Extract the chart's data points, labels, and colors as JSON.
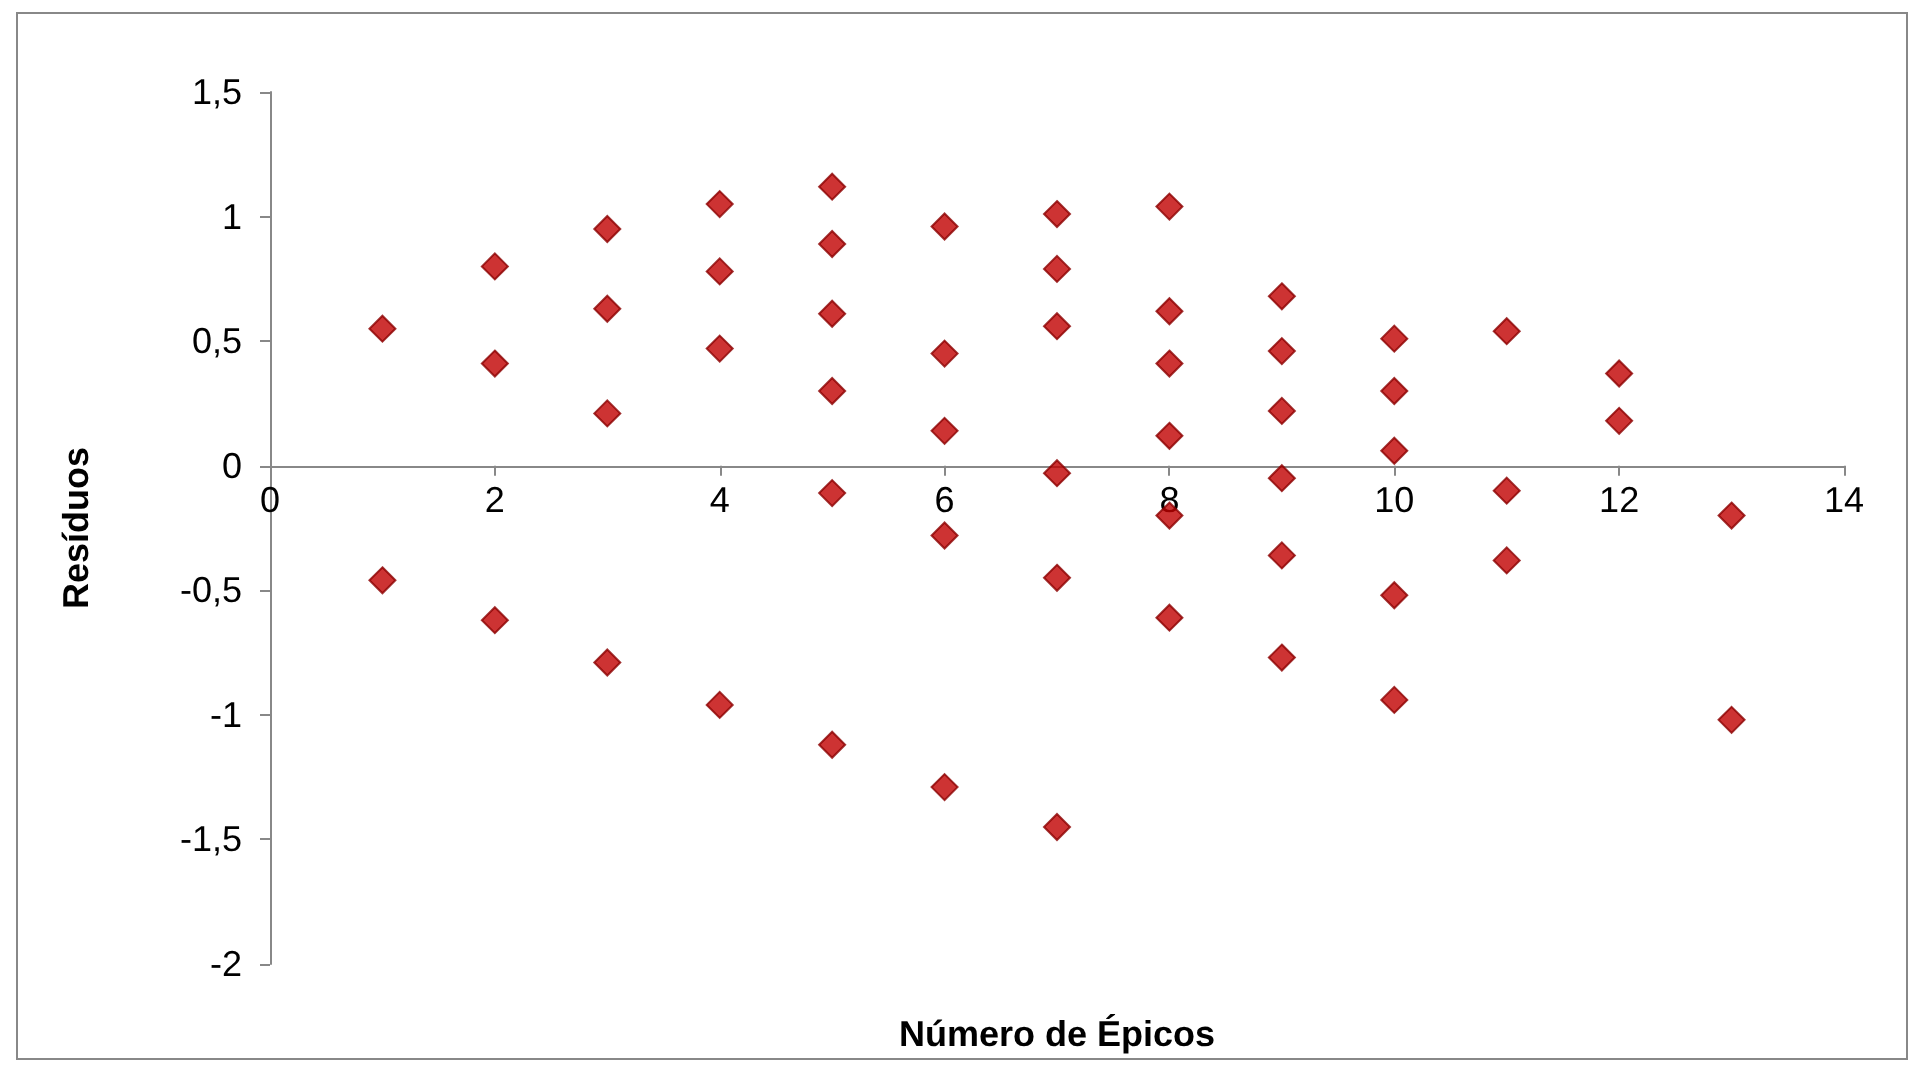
{
  "chart_data": {
    "type": "scatter",
    "xlabel": "Número de Épicos",
    "ylabel": "Resíduos",
    "x": [
      1,
      1,
      2,
      2,
      2,
      3,
      3,
      3,
      3,
      4,
      4,
      4,
      4,
      5,
      5,
      5,
      5,
      5,
      5,
      6,
      6,
      6,
      6,
      6,
      7,
      7,
      7,
      7,
      7,
      7,
      8,
      8,
      8,
      8,
      8,
      8,
      9,
      9,
      9,
      9,
      9,
      9,
      10,
      10,
      10,
      10,
      10,
      11,
      11,
      11,
      12,
      12,
      13,
      13
    ],
    "series": [
      {
        "color": "#c00000",
        "values": [
          0.55,
          -0.46,
          0.8,
          0.41,
          -0.62,
          0.95,
          0.63,
          0.21,
          -0.79,
          1.05,
          0.78,
          0.47,
          -0.96,
          1.12,
          0.89,
          0.61,
          0.3,
          -0.11,
          -1.12,
          0.96,
          0.45,
          0.14,
          -0.28,
          -1.29,
          1.01,
          0.79,
          0.56,
          -0.03,
          -0.45,
          -1.45,
          1.04,
          0.62,
          0.41,
          0.12,
          -0.2,
          -0.61,
          0.68,
          0.46,
          0.22,
          -0.05,
          -0.36,
          -0.77,
          0.51,
          0.3,
          0.06,
          -0.52,
          -0.94,
          0.54,
          -0.1,
          -0.38,
          0.37,
          0.18,
          -0.2,
          -1.02
        ]
      }
    ],
    "xlim": [
      0,
      14
    ],
    "xticks": [
      0,
      2,
      4,
      6,
      8,
      10,
      12,
      14
    ],
    "ylim": [
      -2,
      1.5
    ],
    "yticks": [
      {
        "value": -2,
        "label": "-2"
      },
      {
        "value": -1.5,
        "label": "-1,5"
      },
      {
        "value": -1,
        "label": "-1"
      },
      {
        "value": -0.5,
        "label": "-0,5"
      },
      {
        "value": 0,
        "label": "0"
      },
      {
        "value": 0.5,
        "label": "0,5"
      },
      {
        "value": 1,
        "label": "1"
      },
      {
        "value": 1.5,
        "label": "1,5"
      }
    ],
    "grid": false,
    "marker": "diamond"
  }
}
